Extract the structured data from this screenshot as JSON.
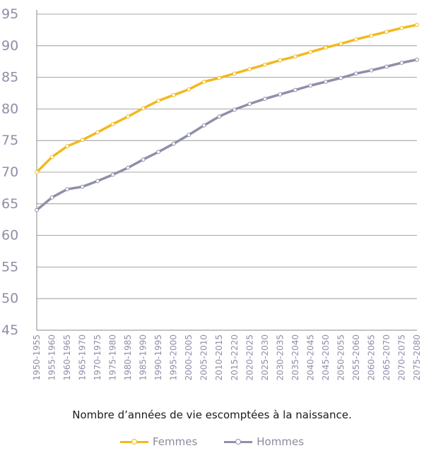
{
  "chart_data": {
    "type": "line",
    "title": "",
    "xlabel": "Nombre d’années de vie escomptées à la naissance.",
    "ylabel": "",
    "ylim": [
      45,
      95
    ],
    "yticks": [
      45,
      50,
      55,
      60,
      65,
      70,
      75,
      80,
      85,
      90,
      95
    ],
    "grid": true,
    "legend_position": "bottom",
    "categories": [
      "1950-1955",
      "1955-1960",
      "1960-1965",
      "1965-1970",
      "1970-1975",
      "1975-1980",
      "1980-1985",
      "1985-1990",
      "1990-1995",
      "1995-2000",
      "2000-2005",
      "2005-2010",
      "2010-2015",
      "2015-2220",
      "2020-2025",
      "2025-2030",
      "2030-2035",
      "2035-2040",
      "2040-2045",
      "2045-2050",
      "2050-2055",
      "2055-2060",
      "2060-2065",
      "2065-2070",
      "2070-2075",
      "2075-2080"
    ],
    "series": [
      {
        "name": "Femmes",
        "color": "#f2b91d",
        "values": [
          70.0,
          72.4,
          74.1,
          75.1,
          76.3,
          77.6,
          78.8,
          80.1,
          81.3,
          82.2,
          83.1,
          84.3,
          84.9,
          85.6,
          86.3,
          87.0,
          87.7,
          88.3,
          89.0,
          89.7,
          90.3,
          91.0,
          91.6,
          92.2,
          92.8,
          93.3
        ]
      },
      {
        "name": "Hommes",
        "color": "#8e8fab",
        "values": [
          64.0,
          66.0,
          67.3,
          67.7,
          68.6,
          69.6,
          70.7,
          72.0,
          73.2,
          74.5,
          75.9,
          77.4,
          78.8,
          79.9,
          80.8,
          81.6,
          82.3,
          83.0,
          83.7,
          84.3,
          84.9,
          85.6,
          86.1,
          86.7,
          87.3,
          87.8
        ]
      }
    ]
  }
}
